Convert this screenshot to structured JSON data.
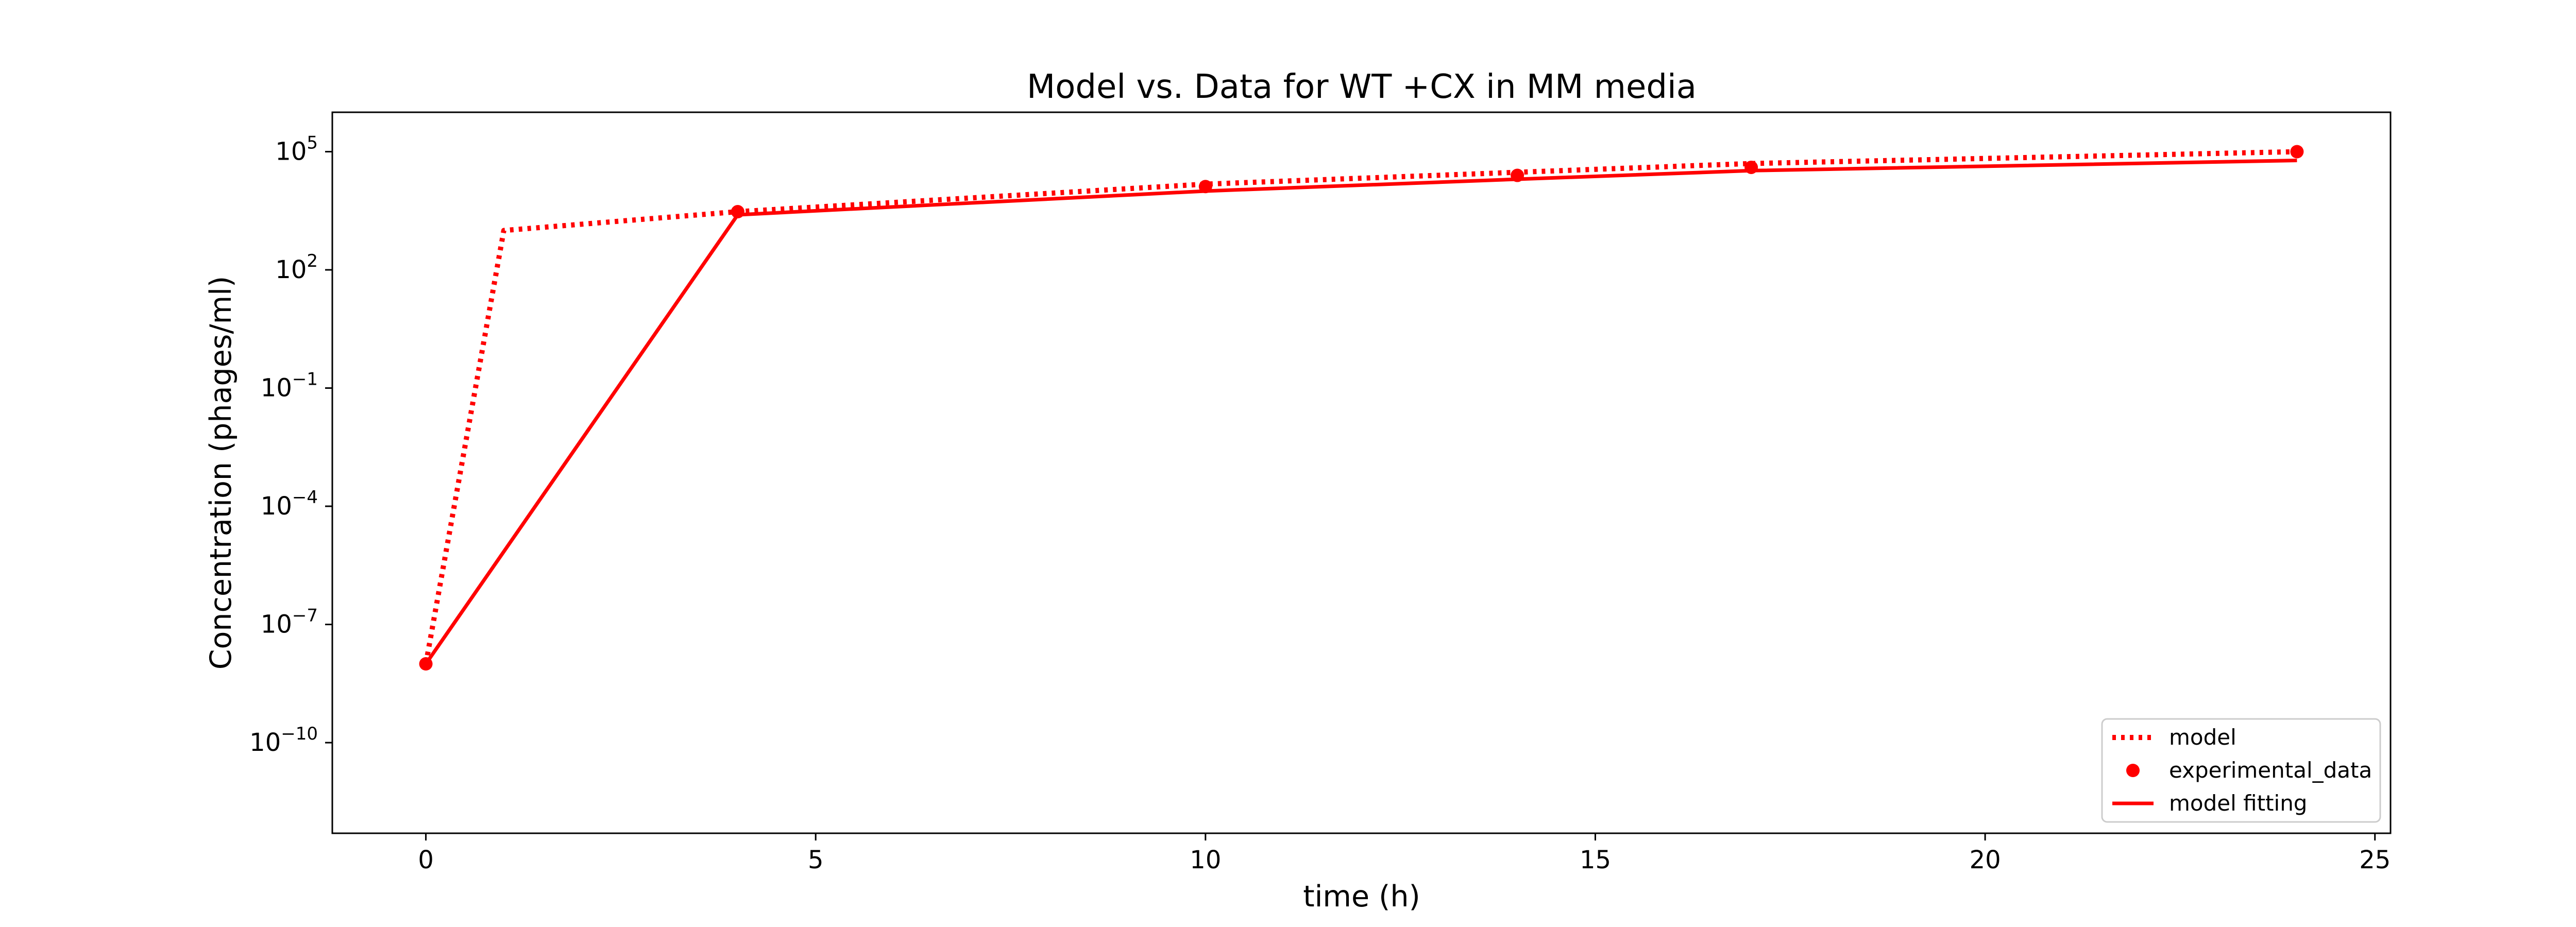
{
  "chart_data": {
    "type": "line",
    "title": "Model vs. Data for WT +CX in MM media",
    "xlabel": "time (h)",
    "ylabel": "Concentration (phages/ml)",
    "xlim": [
      -1.2,
      25.2
    ],
    "ylim_log10": [
      -12.3,
      6.0
    ],
    "yscale": "log",
    "xticks": [
      0,
      5,
      10,
      15,
      20,
      25
    ],
    "xtick_labels": [
      "0",
      "5",
      "10",
      "15",
      "20",
      "25"
    ],
    "yticks_log10": [
      5,
      2,
      -1,
      -4,
      -7,
      -10
    ],
    "ytick_labels": [
      {
        "base": "10",
        "exp": "5"
      },
      {
        "base": "10",
        "exp": "2"
      },
      {
        "base": "10",
        "exp": "−1"
      },
      {
        "base": "10",
        "exp": "−4"
      },
      {
        "base": "10",
        "exp": "−7"
      },
      {
        "base": "10",
        "exp": "−10"
      }
    ],
    "color": "#ff0000",
    "legend_position": "lower right",
    "series": [
      {
        "name": "model",
        "style": "dotted",
        "x": [
          0,
          1,
          4,
          10,
          14,
          17,
          24
        ],
        "y": [
          1e-08,
          1000,
          3000,
          15000,
          30000,
          50000,
          100000
        ]
      },
      {
        "name": "experimental_data",
        "style": "markers",
        "x": [
          0,
          4,
          10,
          14,
          17,
          24
        ],
        "y": [
          1e-08,
          3000,
          13000,
          25000,
          40000,
          100000
        ]
      },
      {
        "name": "model fitting",
        "style": "solid",
        "x": [
          0,
          4,
          10,
          14,
          17,
          24
        ],
        "y": [
          1e-08,
          2500,
          10000,
          20000,
          33000,
          60000
        ]
      }
    ]
  }
}
